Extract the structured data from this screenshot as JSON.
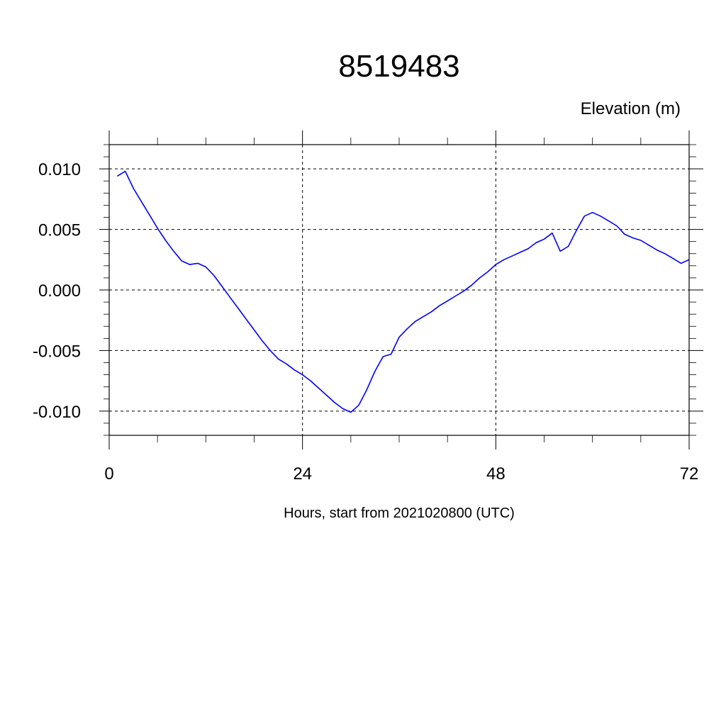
{
  "chart_data": {
    "type": "line",
    "title": "8519483",
    "ylabel": "Elevation (m)",
    "xlabel": "Hours, start from 2021020800 (UTC)",
    "xlim": [
      0,
      72
    ],
    "ylim": [
      -0.012,
      0.012
    ],
    "x_ticks": [
      0,
      24,
      48,
      72
    ],
    "x_tick_labels": [
      "0",
      "24",
      "48",
      "72"
    ],
    "y_ticks": [
      0.01,
      0.005,
      0.0,
      -0.005,
      -0.01
    ],
    "y_tick_labels": [
      "0.010",
      "0.005",
      "0.000",
      "-0.005",
      "-0.010"
    ],
    "grid": true,
    "series": [
      {
        "color": "#0000ff",
        "x": [
          1,
          2,
          3,
          4,
          5,
          6,
          7,
          8,
          9,
          10,
          11,
          12,
          13,
          14,
          15,
          16,
          17,
          18,
          19,
          20,
          21,
          22,
          23,
          24,
          25,
          26,
          27,
          28,
          29,
          30,
          31,
          32,
          33,
          34,
          35,
          36,
          37,
          38,
          39,
          40,
          41,
          42,
          43,
          44,
          45,
          46,
          47,
          48,
          49,
          50,
          51,
          52,
          53,
          54,
          55,
          56,
          57,
          58,
          59,
          60,
          61,
          62,
          63,
          64,
          65,
          66,
          67,
          68,
          69,
          70,
          71,
          72
        ],
        "values": [
          0.0094,
          0.0098,
          0.0084,
          0.0073,
          0.0062,
          0.0051,
          0.0041,
          0.0032,
          0.0024,
          0.0021,
          0.0022,
          0.0019,
          0.0012,
          0.0003,
          -0.0006,
          -0.0015,
          -0.0024,
          -0.0033,
          -0.0042,
          -0.005,
          -0.0057,
          -0.0061,
          -0.0066,
          -0.007,
          -0.0075,
          -0.0081,
          -0.0087,
          -0.0093,
          -0.0098,
          -0.0101,
          -0.0095,
          -0.0082,
          -0.0067,
          -0.0055,
          -0.0053,
          -0.0039,
          -0.0032,
          -0.0026,
          -0.0022,
          -0.0018,
          -0.0013,
          -0.0009,
          -0.0005,
          -0.0001,
          0.0004,
          0.001,
          0.0015,
          0.0021,
          0.0025,
          0.0028,
          0.0031,
          0.0034,
          0.0039,
          0.0042,
          0.0047,
          0.0032,
          0.0036,
          0.0049,
          0.0061,
          0.0064,
          0.0061,
          0.0057,
          0.0053,
          0.0046,
          0.0043,
          0.0041,
          0.0037,
          0.0033,
          0.003,
          0.0026,
          0.0022,
          0.0025
        ]
      }
    ]
  }
}
